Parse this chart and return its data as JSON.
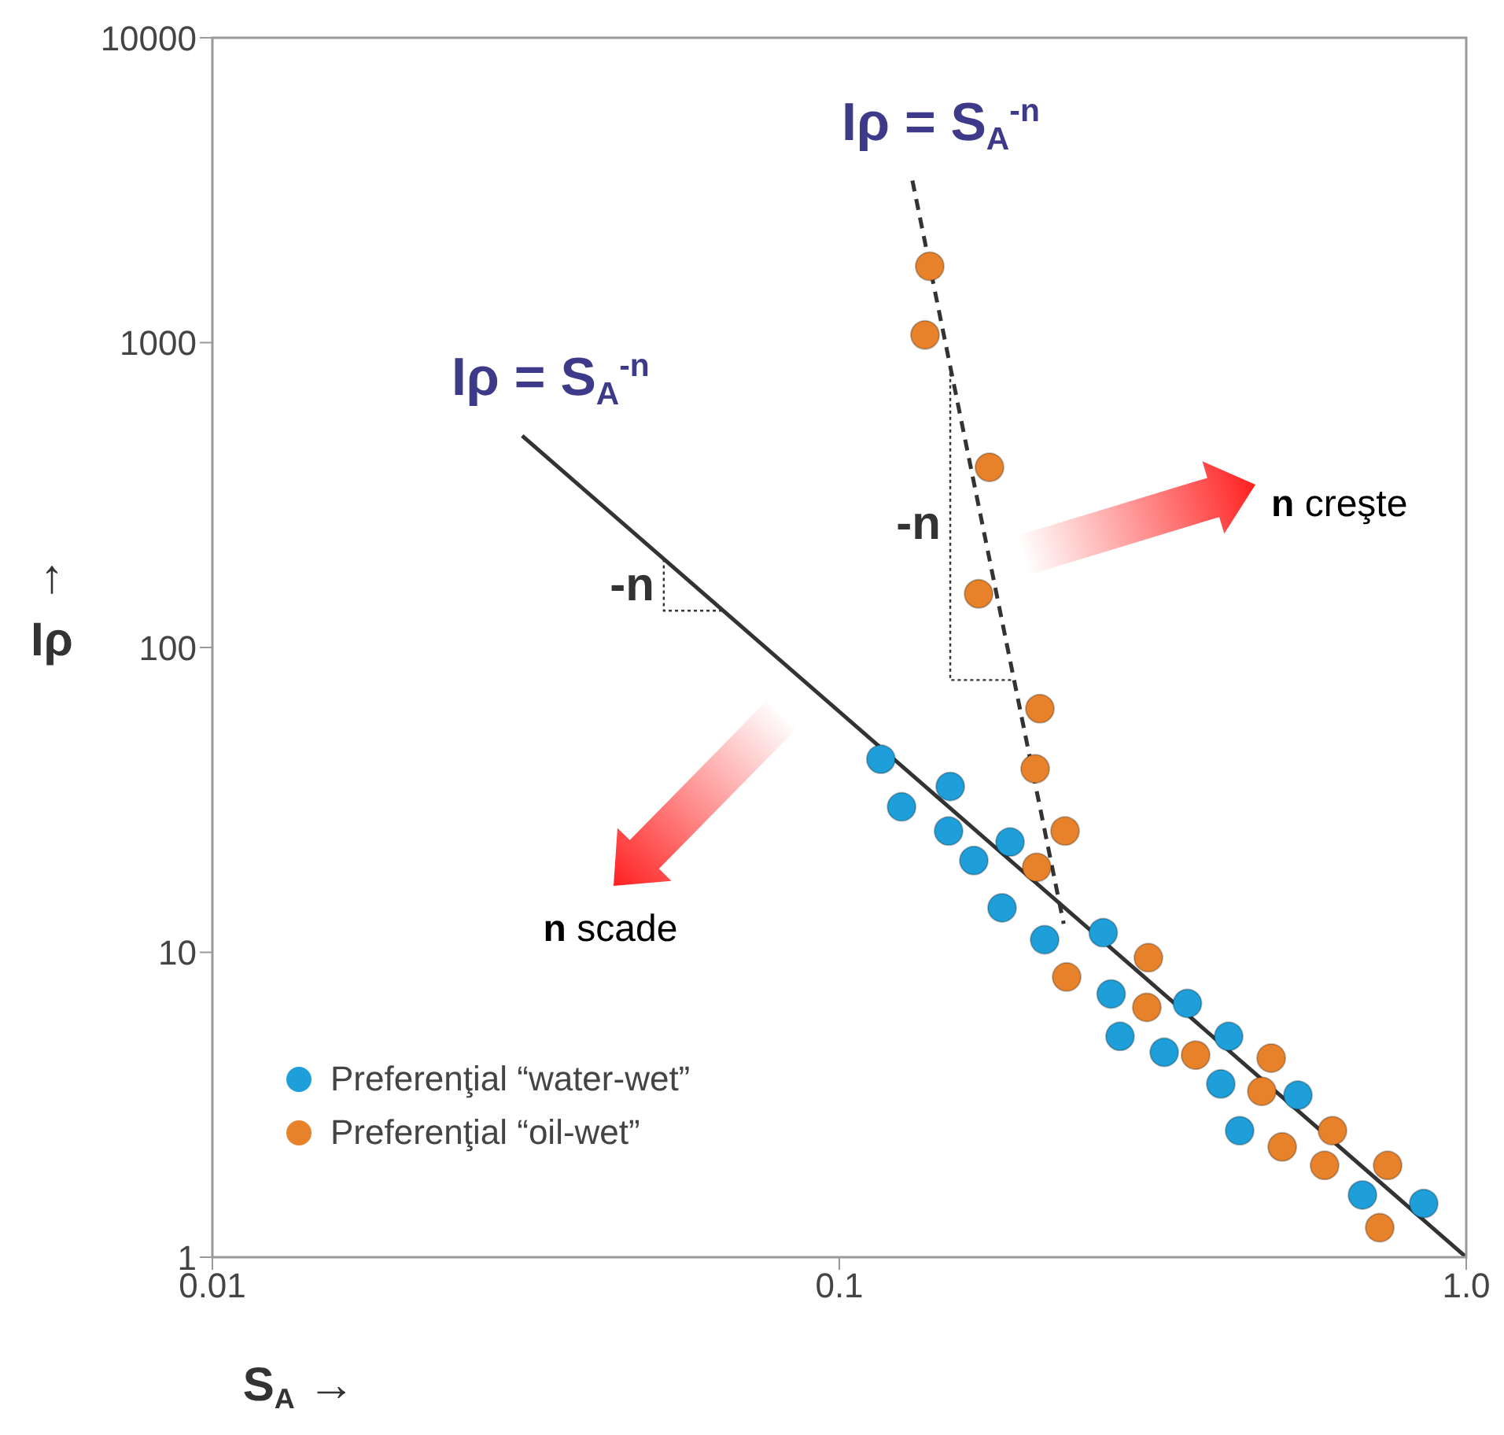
{
  "chart_data": {
    "type": "scatter",
    "xlabel": "S$_{A}$ →",
    "ylabel": "↑ Iρ",
    "log": "xy",
    "xlim": [
      0.01,
      1
    ],
    "xticks": [
      0.01,
      0.1,
      {
        "value": 1,
        "label": "1.0"
      }
    ],
    "ylim": [
      1,
      10000
    ],
    "yticks": [
      1,
      10,
      100,
      1000,
      10000
    ],
    "legend": "bottom left",
    "marker": "circle",
    "series": [
      {
        "name": "Preferenţial “water-wet”",
        "color": "#1e9fd9",
        "x": [
          0.1165,
          0.1257,
          0.1503,
          0.1494,
          0.1639,
          0.1872,
          0.1818,
          0.2126,
          0.2636,
          0.2714,
          0.3591,
          0.2804,
          0.3298,
          0.4179,
          0.406,
          0.5389,
          0.4351,
          0.6831,
          0.8554
        ],
        "values": [
          43,
          30,
          35,
          25,
          20,
          23,
          14,
          11,
          11.6,
          7.3,
          6.8,
          5.3,
          4.7,
          5.3,
          3.7,
          3.4,
          2.6,
          1.6,
          1.5
        ]
      },
      {
        "name": "Preferenţial “oil-wet”",
        "color": "#e8822a",
        "x": [
          0.1394,
          0.137,
          0.1736,
          0.1668,
          0.2089,
          0.2053,
          0.2291,
          0.2065,
          0.3112,
          0.2305,
          0.3094,
          0.3701,
          0.4885,
          0.472,
          0.6118,
          0.5087,
          0.5944,
          0.7492,
          0.7278
        ],
        "values": [
          1780,
          1060,
          390,
          150,
          63,
          40,
          25,
          19,
          9.6,
          8.3,
          6.6,
          4.6,
          4.5,
          3.5,
          2.6,
          2.3,
          2.0,
          2.0,
          1.25
        ]
      },
      {
        "type": "line",
        "color": "#333333",
        "marker": "none",
        "line_style": "solid",
        "x": [
          0.0312,
          1
        ],
        "values": [
          495,
          1
        ]
      },
      {
        "type": "line",
        "color": "#333333",
        "marker": "none",
        "line_style": "dashed",
        "x": [
          0.1308,
          0.228
        ],
        "values": [
          3400,
          12.4
        ]
      }
    ],
    "annotations": [
      {
        "text": "Iρ = S$_{A}$$^{-n}$",
        "x": 0.0312,
        "y": 495
      },
      {
        "text": "Iρ = S$_{A}$$^{-n}$",
        "x": 0.1308,
        "y": 3400
      },
      "-n",
      "-n",
      "n creşte",
      "n scade"
    ]
  }
}
